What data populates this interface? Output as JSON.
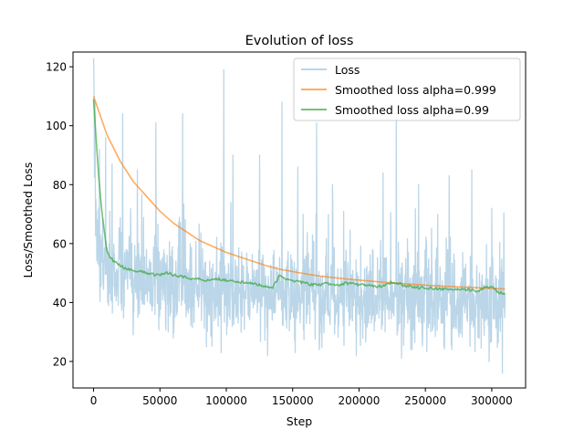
{
  "chart_data": {
    "type": "line",
    "title": "Evolution of loss",
    "xlabel": "Step",
    "ylabel": "Loss/Smoothed Loss",
    "xlim": [
      -15500,
      325500
    ],
    "ylim": [
      11,
      125
    ],
    "xticks": [
      0,
      50000,
      100000,
      150000,
      200000,
      250000,
      300000
    ],
    "xtick_labels": [
      "0",
      "50000",
      "100000",
      "150000",
      "200000",
      "250000",
      "300000"
    ],
    "yticks": [
      20,
      40,
      60,
      80,
      100,
      120
    ],
    "ytick_labels": [
      "20",
      "40",
      "60",
      "80",
      "100",
      "120"
    ],
    "grid": false,
    "legend_position": "upper right",
    "series": [
      {
        "name": "Loss",
        "color": "#1f77b4",
        "alpha": 0.3,
        "style": "noisy",
        "x": [
          0,
          2000,
          5000,
          10000,
          20000,
          30000,
          40000,
          50000,
          60000,
          70000,
          80000,
          90000,
          100000,
          120000,
          140000,
          160000,
          180000,
          200000,
          220000,
          240000,
          260000,
          280000,
          300000,
          310000
        ],
        "values": [
          110,
          70,
          55,
          52,
          50,
          49,
          48,
          47,
          46,
          45,
          45,
          44,
          44,
          44,
          43,
          43,
          42,
          42,
          42,
          42,
          41,
          41,
          41,
          41
        ],
        "spikes": [
          [
            1000,
            108
          ],
          [
            4500,
            92
          ],
          [
            9000,
            96
          ],
          [
            14000,
            87
          ],
          [
            22000,
            104
          ],
          [
            33000,
            85
          ],
          [
            47000,
            101
          ],
          [
            67000,
            104
          ],
          [
            96000,
            95
          ],
          [
            98000,
            119
          ],
          [
            105000,
            90
          ],
          [
            125000,
            90
          ],
          [
            142000,
            108
          ],
          [
            154000,
            86
          ],
          [
            168000,
            101
          ],
          [
            180000,
            80
          ],
          [
            198000,
            88
          ],
          [
            218000,
            84
          ],
          [
            228000,
            103
          ],
          [
            245000,
            80
          ],
          [
            268000,
            83
          ],
          [
            285000,
            85
          ],
          [
            300000,
            72
          ]
        ],
        "dips": [
          [
            30000,
            29
          ],
          [
            60000,
            28
          ],
          [
            85000,
            25
          ],
          [
            96000,
            23
          ],
          [
            131000,
            22
          ],
          [
            152000,
            23
          ],
          [
            170000,
            24
          ],
          [
            198000,
            22
          ],
          [
            240000,
            24
          ],
          [
            270000,
            24
          ],
          [
            298000,
            20
          ],
          [
            308000,
            16
          ]
        ]
      },
      {
        "name": "Smoothed loss alpha=0.999",
        "color": "#ff7f0e",
        "alpha": 0.65,
        "style": "smooth",
        "x": [
          0,
          10000,
          20000,
          30000,
          40000,
          50000,
          60000,
          70000,
          80000,
          90000,
          100000,
          110000,
          120000,
          130000,
          140000,
          150000,
          160000,
          170000,
          180000,
          190000,
          200000,
          210000,
          220000,
          230000,
          240000,
          250000,
          260000,
          270000,
          280000,
          290000,
          300000,
          310000
        ],
        "values": [
          110,
          97,
          88,
          81,
          76,
          71,
          67,
          64,
          61,
          59,
          57,
          55.5,
          54,
          52.5,
          51.3,
          50.5,
          49.7,
          49,
          48.5,
          48,
          47.6,
          47.2,
          46.8,
          46.5,
          46.2,
          45.9,
          45.6,
          45.4,
          45.2,
          45,
          44.8,
          44.6
        ]
      },
      {
        "name": "Smoothed loss alpha=0.99",
        "color": "#2ca02c",
        "alpha": 0.65,
        "style": "smooth",
        "x": [
          0,
          2000,
          4000,
          6000,
          8000,
          10000,
          12000,
          15000,
          20000,
          25000,
          30000,
          35000,
          40000,
          45000,
          50000,
          55000,
          60000,
          65000,
          70000,
          75000,
          80000,
          85000,
          90000,
          95000,
          100000,
          105000,
          110000,
          115000,
          120000,
          125000,
          130000,
          135000,
          140000,
          145000,
          150000,
          155000,
          160000,
          165000,
          170000,
          175000,
          180000,
          185000,
          190000,
          195000,
          200000,
          205000,
          210000,
          215000,
          220000,
          225000,
          230000,
          235000,
          240000,
          245000,
          250000,
          255000,
          260000,
          265000,
          270000,
          275000,
          280000,
          285000,
          290000,
          295000,
          300000,
          305000,
          310000
        ],
        "values": [
          109,
          95,
          82,
          72,
          64,
          58,
          56,
          54,
          52.5,
          51.5,
          51,
          50.5,
          50,
          49.5,
          49.5,
          50,
          49.5,
          49,
          48.5,
          48,
          48,
          47.5,
          48,
          48,
          47.5,
          47.5,
          47,
          46.5,
          46.5,
          46,
          45.5,
          45,
          49,
          48,
          47.5,
          47,
          46.5,
          46,
          46,
          46.5,
          46,
          46,
          46.5,
          46.5,
          46,
          46,
          45.5,
          45.5,
          46,
          47,
          46.5,
          45.5,
          45.5,
          45,
          45,
          44.8,
          44.6,
          44.5,
          44.5,
          44.3,
          44.2,
          44.2,
          44,
          45,
          45.5,
          43.5,
          43
        ]
      }
    ]
  }
}
